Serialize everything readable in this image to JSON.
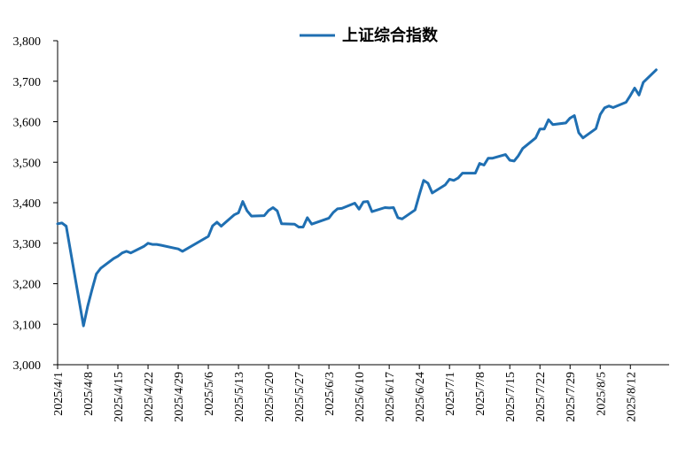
{
  "chart_data": {
    "type": "line",
    "title": "",
    "xlabel": "",
    "ylabel": "",
    "ylim": [
      3000,
      3800
    ],
    "y_ticks": [
      3000,
      3100,
      3200,
      3300,
      3400,
      3500,
      3600,
      3700,
      3800
    ],
    "y_tick_labels": [
      "3,000",
      "3,100",
      "3,200",
      "3,300",
      "3,400",
      "3,500",
      "3,600",
      "3,700",
      "3,800"
    ],
    "x_range": [
      "2025-04-01",
      "2025-08-21"
    ],
    "x_ticks": [
      "2025-04-01",
      "2025-04-08",
      "2025-04-15",
      "2025-04-22",
      "2025-04-29",
      "2025-05-06",
      "2025-05-13",
      "2025-05-20",
      "2025-05-27",
      "2025-06-03",
      "2025-06-10",
      "2025-06-17",
      "2025-06-24",
      "2025-07-01",
      "2025-07-08",
      "2025-07-15",
      "2025-07-22",
      "2025-07-29",
      "2025-08-05",
      "2025-08-12"
    ],
    "x_tick_labels": [
      "2025/4/1",
      "2025/4/8",
      "2025/4/15",
      "2025/4/22",
      "2025/4/29",
      "2025/5/6",
      "2025/5/13",
      "2025/5/20",
      "2025/5/27",
      "2025/6/3",
      "2025/6/10",
      "2025/6/17",
      "2025/6/24",
      "2025/7/1",
      "2025/7/8",
      "2025/7/15",
      "2025/7/22",
      "2025/7/29",
      "2025/8/5",
      "2025/8/12"
    ],
    "grid": false,
    "legend_position": "top-center",
    "series": [
      {
        "name": "上证综合指数",
        "color": "#1f6fb2",
        "points": [
          [
            "2025-04-01",
            3348
          ],
          [
            "2025-04-02",
            3350
          ],
          [
            "2025-04-03",
            3342
          ],
          [
            "2025-04-07",
            3096
          ],
          [
            "2025-04-08",
            3145
          ],
          [
            "2025-04-09",
            3186
          ],
          [
            "2025-04-10",
            3224
          ],
          [
            "2025-04-11",
            3238
          ],
          [
            "2025-04-14",
            3262
          ],
          [
            "2025-04-15",
            3268
          ],
          [
            "2025-04-16",
            3276
          ],
          [
            "2025-04-17",
            3280
          ],
          [
            "2025-04-18",
            3276
          ],
          [
            "2025-04-21",
            3292
          ],
          [
            "2025-04-22",
            3300
          ],
          [
            "2025-04-23",
            3297
          ],
          [
            "2025-04-24",
            3297
          ],
          [
            "2025-04-25",
            3295
          ],
          [
            "2025-04-28",
            3288
          ],
          [
            "2025-04-29",
            3286
          ],
          [
            "2025-04-30",
            3280
          ],
          [
            "2025-05-06",
            3317
          ],
          [
            "2025-05-07",
            3343
          ],
          [
            "2025-05-08",
            3352
          ],
          [
            "2025-05-09",
            3342
          ],
          [
            "2025-05-12",
            3370
          ],
          [
            "2025-05-13",
            3375
          ],
          [
            "2025-05-14",
            3403
          ],
          [
            "2025-05-15",
            3380
          ],
          [
            "2025-05-16",
            3367
          ],
          [
            "2025-05-19",
            3368
          ],
          [
            "2025-05-20",
            3381
          ],
          [
            "2025-05-21",
            3388
          ],
          [
            "2025-05-22",
            3380
          ],
          [
            "2025-05-23",
            3348
          ],
          [
            "2025-05-26",
            3347
          ],
          [
            "2025-05-27",
            3340
          ],
          [
            "2025-05-28",
            3340
          ],
          [
            "2025-05-29",
            3363
          ],
          [
            "2025-05-30",
            3347
          ],
          [
            "2025-06-03",
            3362
          ],
          [
            "2025-06-04",
            3376
          ],
          [
            "2025-06-05",
            3385
          ],
          [
            "2025-06-06",
            3386
          ],
          [
            "2025-06-09",
            3399
          ],
          [
            "2025-06-10",
            3384
          ],
          [
            "2025-06-11",
            3402
          ],
          [
            "2025-06-12",
            3403
          ],
          [
            "2025-06-13",
            3378
          ],
          [
            "2025-06-16",
            3388
          ],
          [
            "2025-06-17",
            3387
          ],
          [
            "2025-06-18",
            3388
          ],
          [
            "2025-06-19",
            3363
          ],
          [
            "2025-06-20",
            3360
          ],
          [
            "2025-06-23",
            3382
          ],
          [
            "2025-06-24",
            3420
          ],
          [
            "2025-06-25",
            3455
          ],
          [
            "2025-06-26",
            3448
          ],
          [
            "2025-06-27",
            3424
          ],
          [
            "2025-06-30",
            3444
          ],
          [
            "2025-07-01",
            3458
          ],
          [
            "2025-07-02",
            3455
          ],
          [
            "2025-07-03",
            3461
          ],
          [
            "2025-07-04",
            3473
          ],
          [
            "2025-07-07",
            3473
          ],
          [
            "2025-07-08",
            3497
          ],
          [
            "2025-07-09",
            3493
          ],
          [
            "2025-07-10",
            3510
          ],
          [
            "2025-07-11",
            3510
          ],
          [
            "2025-07-14",
            3519
          ],
          [
            "2025-07-15",
            3505
          ],
          [
            "2025-07-16",
            3503
          ],
          [
            "2025-07-17",
            3516
          ],
          [
            "2025-07-18",
            3534
          ],
          [
            "2025-07-21",
            3560
          ],
          [
            "2025-07-22",
            3582
          ],
          [
            "2025-07-23",
            3582
          ],
          [
            "2025-07-24",
            3605
          ],
          [
            "2025-07-25",
            3593
          ],
          [
            "2025-07-28",
            3597
          ],
          [
            "2025-07-29",
            3609
          ],
          [
            "2025-07-30",
            3615
          ],
          [
            "2025-07-31",
            3573
          ],
          [
            "2025-08-01",
            3560
          ],
          [
            "2025-08-04",
            3583
          ],
          [
            "2025-08-05",
            3618
          ],
          [
            "2025-08-06",
            3634
          ],
          [
            "2025-08-07",
            3639
          ],
          [
            "2025-08-08",
            3635
          ],
          [
            "2025-08-11",
            3648
          ],
          [
            "2025-08-12",
            3665
          ],
          [
            "2025-08-13",
            3683
          ],
          [
            "2025-08-14",
            3666
          ],
          [
            "2025-08-15",
            3697
          ],
          [
            "2025-08-18",
            3728
          ]
        ]
      }
    ]
  }
}
